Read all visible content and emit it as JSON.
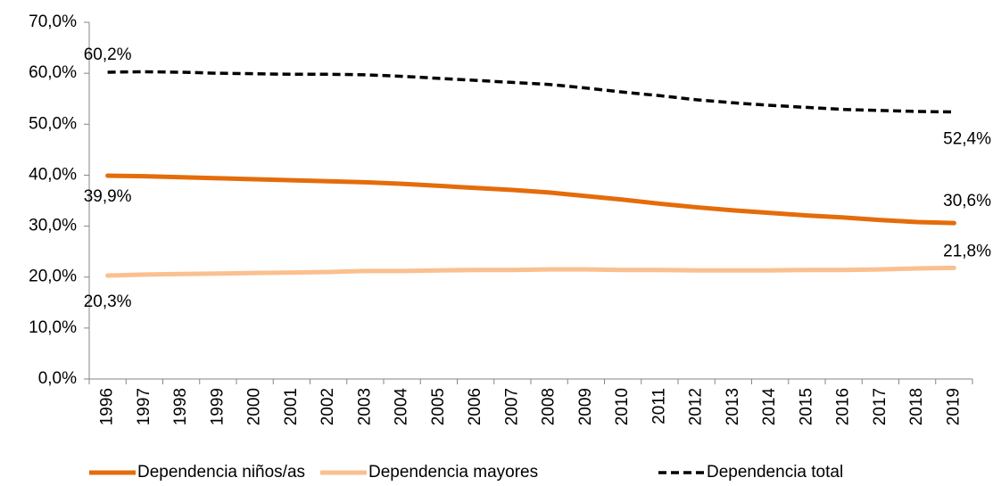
{
  "chart_data": {
    "type": "line",
    "categories": [
      "1996",
      "1997",
      "1998",
      "1999",
      "2000",
      "2001",
      "2002",
      "2003",
      "2004",
      "2005",
      "2006",
      "2007",
      "2008",
      "2009",
      "2010",
      "2011",
      "2012",
      "2013",
      "2014",
      "2015",
      "2016",
      "2017",
      "2018",
      "2019"
    ],
    "series": [
      {
        "name": "Dependencia niños/as",
        "color": "#e46c0a",
        "dash": false,
        "values": [
          39.9,
          39.8,
          39.6,
          39.4,
          39.2,
          39.0,
          38.8,
          38.6,
          38.3,
          37.9,
          37.5,
          37.1,
          36.6,
          35.9,
          35.2,
          34.4,
          33.7,
          33.1,
          32.6,
          32.1,
          31.7,
          31.2,
          30.8,
          30.6
        ],
        "value_labels": [
          "39,9%",
          null,
          null,
          null,
          null,
          null,
          null,
          null,
          null,
          null,
          null,
          null,
          null,
          null,
          null,
          null,
          null,
          null,
          null,
          null,
          null,
          null,
          null,
          "30,6%"
        ]
      },
      {
        "name": "Dependencia mayores",
        "color": "#fac090",
        "dash": false,
        "values": [
          20.3,
          20.5,
          20.6,
          20.7,
          20.8,
          20.9,
          21.0,
          21.2,
          21.2,
          21.3,
          21.4,
          21.4,
          21.5,
          21.5,
          21.4,
          21.4,
          21.3,
          21.3,
          21.3,
          21.4,
          21.4,
          21.5,
          21.7,
          21.8
        ],
        "value_labels": [
          "20,3%",
          null,
          null,
          null,
          null,
          null,
          null,
          null,
          null,
          null,
          null,
          null,
          null,
          null,
          null,
          null,
          null,
          null,
          null,
          null,
          null,
          null,
          null,
          "21,8%"
        ]
      },
      {
        "name": "Dependencia total",
        "color": "#000000",
        "dash": true,
        "values": [
          60.2,
          60.3,
          60.2,
          60.0,
          59.9,
          59.8,
          59.8,
          59.7,
          59.4,
          59.0,
          58.6,
          58.2,
          57.8,
          57.1,
          56.3,
          55.6,
          54.8,
          54.2,
          53.7,
          53.3,
          52.9,
          52.7,
          52.5,
          52.4
        ],
        "value_labels": [
          "60,2%",
          null,
          null,
          null,
          null,
          null,
          null,
          null,
          null,
          null,
          null,
          null,
          null,
          null,
          null,
          null,
          null,
          null,
          null,
          null,
          null,
          null,
          null,
          "52,4%"
        ]
      }
    ],
    "ylim": [
      0,
      70
    ],
    "yticks": [
      {
        "value": 0,
        "label": "0,0%"
      },
      {
        "value": 10,
        "label": "10,0%"
      },
      {
        "value": 20,
        "label": "20,0%"
      },
      {
        "value": 30,
        "label": "30,0%"
      },
      {
        "value": 40,
        "label": "40,0%"
      },
      {
        "value": 50,
        "label": "50,0%"
      },
      {
        "value": 60,
        "label": "60,0%"
      },
      {
        "value": 70,
        "label": "70,0%"
      }
    ],
    "grid": false,
    "legend": "bottom"
  }
}
